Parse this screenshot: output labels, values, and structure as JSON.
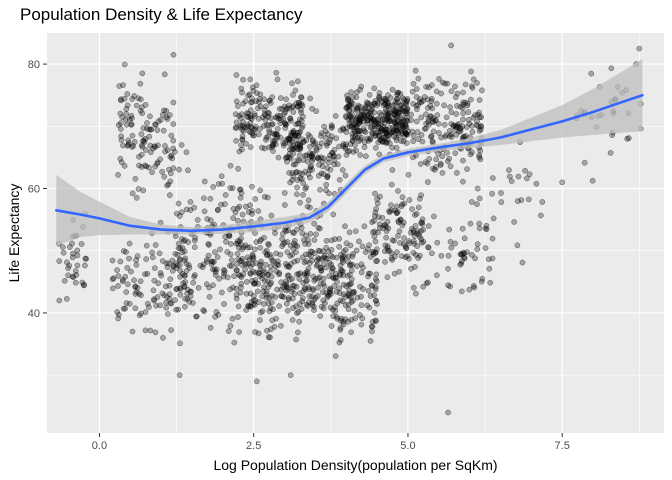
{
  "chart_data": {
    "type": "scatter",
    "title": "Population Density & Life Expectancy",
    "xlabel": "Log Population Density(population per SqKm)",
    "ylabel": "Life Expectancy",
    "xlim": [
      -0.85,
      9.15
    ],
    "ylim": [
      20.7,
      85.0
    ],
    "x_ticks": [
      {
        "value": 0.0,
        "label": "0.0"
      },
      {
        "value": 2.5,
        "label": "2.5"
      },
      {
        "value": 5.0,
        "label": "5.0"
      },
      {
        "value": 7.5,
        "label": "7.5"
      }
    ],
    "y_ticks": [
      {
        "value": 40,
        "label": "40"
      },
      {
        "value": 60,
        "label": "60"
      },
      {
        "value": 80,
        "label": "80"
      }
    ],
    "grid": true,
    "legend": "none",
    "colors": {
      "panel": "#ebebeb",
      "grid": "#ffffff",
      "points": "#000000",
      "smooth_line": "#3366ff",
      "ribbon": "#bdbdbd"
    },
    "smooth": {
      "method": "loess",
      "x": [
        -0.7,
        -0.3,
        0.0,
        0.5,
        1.0,
        1.5,
        2.0,
        2.5,
        3.0,
        3.4,
        3.7,
        4.0,
        4.3,
        4.6,
        5.0,
        5.5,
        6.0,
        6.5,
        7.0,
        7.5,
        8.0,
        8.5,
        8.8
      ],
      "y": [
        56.5,
        55.8,
        55.2,
        54.0,
        53.4,
        53.2,
        53.4,
        53.9,
        54.5,
        55.3,
        57.0,
        60.0,
        63.0,
        64.8,
        65.8,
        66.6,
        67.3,
        68.2,
        69.5,
        70.8,
        72.3,
        74.0,
        75.0
      ],
      "ci_low": [
        50.8,
        52.2,
        52.5,
        52.6,
        52.6,
        52.6,
        52.7,
        53.0,
        53.6,
        54.5,
        56.2,
        59.2,
        62.3,
        64.2,
        65.2,
        66.0,
        66.5,
        67.0,
        67.6,
        68.2,
        68.6,
        69.0,
        69.2
      ],
      "ci_high": [
        62.2,
        59.4,
        57.9,
        55.4,
        54.2,
        53.8,
        54.1,
        54.8,
        55.4,
        56.1,
        57.8,
        60.8,
        63.7,
        65.4,
        66.4,
        67.2,
        68.1,
        69.4,
        71.4,
        73.4,
        76.0,
        79.0,
        80.8
      ]
    },
    "scatter_clusters": [
      {
        "x": [
          -0.7,
          -0.2
        ],
        "y": [
          40,
          58
        ],
        "n": 35
      },
      {
        "x": [
          0.3,
          1.2
        ],
        "y": [
          55,
          82
        ],
        "n": 120
      },
      {
        "x": [
          0.2,
          1.4
        ],
        "y": [
          33,
          57
        ],
        "n": 110
      },
      {
        "x": [
          1.2,
          2.3
        ],
        "y": [
          30,
          70
        ],
        "n": 170
      },
      {
        "x": [
          2.2,
          2.8
        ],
        "y": [
          63,
          80
        ],
        "n": 100
      },
      {
        "x": [
          2.2,
          3.6
        ],
        "y": [
          33,
          63
        ],
        "n": 330
      },
      {
        "x": [
          2.8,
          3.3
        ],
        "y": [
          60,
          80
        ],
        "n": 90
      },
      {
        "x": [
          3.0,
          4.0
        ],
        "y": [
          55,
          76
        ],
        "n": 160
      },
      {
        "x": [
          3.6,
          4.5
        ],
        "y": [
          30,
          58
        ],
        "n": 180
      },
      {
        "x": [
          4.0,
          5.0
        ],
        "y": [
          64,
          78
        ],
        "n": 330
      },
      {
        "x": [
          4.4,
          5.3
        ],
        "y": [
          42,
          64
        ],
        "n": 120
      },
      {
        "x": [
          5.0,
          6.2
        ],
        "y": [
          58,
          82
        ],
        "n": 190
      },
      {
        "x": [
          5.3,
          6.4
        ],
        "y": [
          40,
          58
        ],
        "n": 50
      },
      {
        "x": [
          6.0,
          7.2
        ],
        "y": [
          45,
          72
        ],
        "n": 30
      },
      {
        "x": [
          7.6,
          8.8
        ],
        "y": [
          60,
          82
        ],
        "n": 30
      }
    ],
    "scatter_points": [
      {
        "x": 5.65,
        "y": 24
      },
      {
        "x": 2.55,
        "y": 29
      },
      {
        "x": 1.3,
        "y": 30
      },
      {
        "x": 3.1,
        "y": 30
      },
      {
        "x": 1.2,
        "y": 81.5
      },
      {
        "x": 5.7,
        "y": 83
      },
      {
        "x": 8.75,
        "y": 82.5
      },
      {
        "x": 7.5,
        "y": 61
      },
      {
        "x": 8.7,
        "y": 80
      },
      {
        "x": -0.65,
        "y": 42
      }
    ]
  }
}
